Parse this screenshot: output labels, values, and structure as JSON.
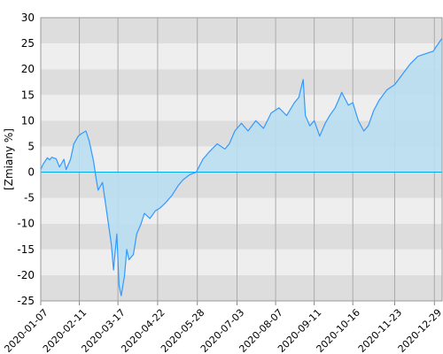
{
  "chart_data": {
    "type": "area",
    "title": "",
    "xlabel": "",
    "ylabel": "[Zmiany %]",
    "ylim": [
      -25,
      30
    ],
    "y_ticks": [
      -25,
      -20,
      -15,
      -10,
      -5,
      0,
      5,
      10,
      15,
      20,
      25,
      30
    ],
    "x_range": [
      "2020-01-07",
      "2021-01-05"
    ],
    "x_ticks": [
      "2020-01-07",
      "2020-02-11",
      "2020-03-17",
      "2020-04-22",
      "2020-05-28",
      "2020-07-03",
      "2020-08-07",
      "2020-09-11",
      "2020-10-16",
      "2020-11-23",
      "2020-12-29"
    ],
    "grid": true,
    "colors": {
      "line": "#3399ff",
      "fill": "#b9def0",
      "band_dark": "#dddddd",
      "band_light": "#eeeeee",
      "zero_line": "#00aaee"
    },
    "series": [
      {
        "x": [
          "2020-01-07",
          "2020-01-09",
          "2020-01-13",
          "2020-01-15",
          "2020-01-17",
          "2020-01-21",
          "2020-01-24",
          "2020-01-28",
          "2020-01-30",
          "2020-02-03",
          "2020-02-06",
          "2020-02-10",
          "2020-02-13",
          "2020-02-17",
          "2020-02-20",
          "2020-02-24",
          "2020-02-26",
          "2020-02-28",
          "2020-03-03",
          "2020-03-05",
          "2020-03-09",
          "2020-03-11",
          "2020-03-13",
          "2020-03-16",
          "2020-03-18",
          "2020-03-20",
          "2020-03-23",
          "2020-03-25",
          "2020-03-27",
          "2020-03-31",
          "2020-04-03",
          "2020-04-07",
          "2020-04-10",
          "2020-04-15",
          "2020-04-20",
          "2020-04-24",
          "2020-04-29",
          "2020-05-05",
          "2020-05-11",
          "2020-05-15",
          "2020-05-21",
          "2020-05-27",
          "2020-06-02",
          "2020-06-08",
          "2020-06-15",
          "2020-06-22",
          "2020-06-26",
          "2020-07-01",
          "2020-07-07",
          "2020-07-13",
          "2020-07-20",
          "2020-07-27",
          "2020-08-03",
          "2020-08-10",
          "2020-08-17",
          "2020-08-24",
          "2020-08-28",
          "2020-09-01",
          "2020-09-03",
          "2020-09-07",
          "2020-09-11",
          "2020-09-16",
          "2020-09-21",
          "2020-09-25",
          "2020-09-30",
          "2020-10-06",
          "2020-10-12",
          "2020-10-16",
          "2020-10-21",
          "2020-10-26",
          "2020-10-30",
          "2020-11-04",
          "2020-11-09",
          "2020-11-16",
          "2020-11-23",
          "2020-11-30",
          "2020-12-07",
          "2020-12-14",
          "2020-12-21",
          "2020-12-28",
          "2020-12-31",
          "2021-01-05"
        ],
        "values": [
          0.5,
          1.5,
          2.8,
          2.4,
          2.9,
          2.6,
          1.0,
          2.5,
          0.5,
          2.5,
          5.5,
          7.0,
          7.5,
          8.0,
          6.0,
          2.0,
          -1.0,
          -3.5,
          -2.0,
          -5.0,
          -11.0,
          -14.0,
          -19.0,
          -12.0,
          -22.0,
          -24.0,
          -20.0,
          -15.0,
          -17.0,
          -16.0,
          -12.0,
          -10.0,
          -8.0,
          -9.0,
          -7.5,
          -7.0,
          -6.0,
          -4.5,
          -2.5,
          -1.5,
          -0.5,
          0.0,
          2.5,
          4.0,
          5.5,
          4.5,
          5.5,
          8.0,
          9.5,
          8.0,
          10.0,
          8.5,
          11.5,
          12.5,
          11.0,
          13.5,
          14.5,
          18.0,
          11.0,
          9.0,
          10.0,
          7.0,
          9.5,
          11.0,
          12.5,
          15.5,
          13.0,
          13.5,
          10.0,
          8.0,
          9.0,
          12.0,
          14.0,
          16.0,
          17.0,
          19.0,
          21.0,
          22.5,
          23.0,
          23.5,
          24.5,
          26.0
        ]
      }
    ]
  }
}
